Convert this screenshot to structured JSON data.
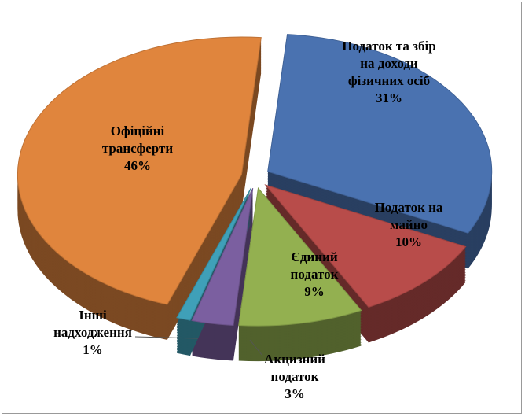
{
  "chart_data": {
    "type": "pie",
    "categories": [
      "Податок та збір на доходи фізичних осіб",
      "Податок на майно",
      "Єдиний податок",
      "Акцизний податок",
      "Інші надходження",
      "Офіційні трансферти"
    ],
    "values": [
      31,
      10,
      9,
      3,
      1,
      46
    ],
    "value_labels": [
      "31%",
      "10%",
      "9%",
      "3%",
      "1%",
      "46%"
    ],
    "colors": [
      "#4a72b0",
      "#b84c4a",
      "#93b050",
      "#7b5fa0",
      "#3fa0b8",
      "#e0853d"
    ]
  }
}
